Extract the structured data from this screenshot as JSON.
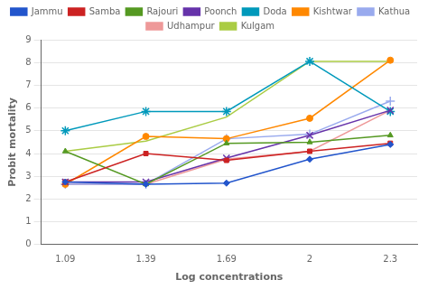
{
  "chart_data": {
    "type": "line",
    "x": [
      1.09,
      1.39,
      1.69,
      2.0,
      2.3
    ],
    "series": [
      {
        "name": "Jammu",
        "color": "#2255CC",
        "marker": "diamond",
        "values": [
          2.75,
          2.65,
          2.7,
          3.75,
          4.4
        ]
      },
      {
        "name": "Samba",
        "color": "#CC2222",
        "marker": "square",
        "values": [
          2.75,
          4.0,
          3.7,
          4.1,
          4.45
        ]
      },
      {
        "name": "Rajouri",
        "color": "#559922",
        "marker": "triangle",
        "values": [
          4.1,
          2.65,
          4.45,
          4.5,
          4.8
        ]
      },
      {
        "name": "Poonch",
        "color": "#6633AA",
        "marker": "x",
        "values": [
          2.75,
          2.75,
          3.8,
          4.8,
          5.9
        ]
      },
      {
        "name": "Doda",
        "color": "#0099BB",
        "marker": "star",
        "values": [
          5.0,
          5.85,
          5.85,
          8.05,
          5.85
        ]
      },
      {
        "name": "Kishtwar",
        "color": "#FF8800",
        "marker": "circle",
        "values": [
          2.65,
          4.75,
          4.65,
          5.55,
          8.1
        ]
      },
      {
        "name": "Kathua",
        "color": "#99AAEE",
        "marker": "plus",
        "values": [
          2.65,
          2.65,
          4.65,
          4.85,
          6.3
        ]
      },
      {
        "name": "Udhampur",
        "color": "#EE9999",
        "marker": "none",
        "values": [
          2.65,
          2.65,
          3.75,
          4.1,
          5.9
        ]
      },
      {
        "name": "Kulgam",
        "color": "#AACC44",
        "marker": "none",
        "values": [
          4.1,
          4.55,
          5.6,
          8.05,
          8.05
        ]
      }
    ],
    "xlabel": "Log concentrations",
    "ylabel": "Probit mortality",
    "xlim": [
      1.0,
      2.4
    ],
    "xticks": [
      1.09,
      1.39,
      1.69,
      2,
      2.3
    ],
    "ylim": [
      0,
      9
    ],
    "yticks": [
      0,
      1,
      2,
      3,
      4,
      5,
      6,
      7,
      8,
      9
    ],
    "grid": "y",
    "legend": "top"
  }
}
